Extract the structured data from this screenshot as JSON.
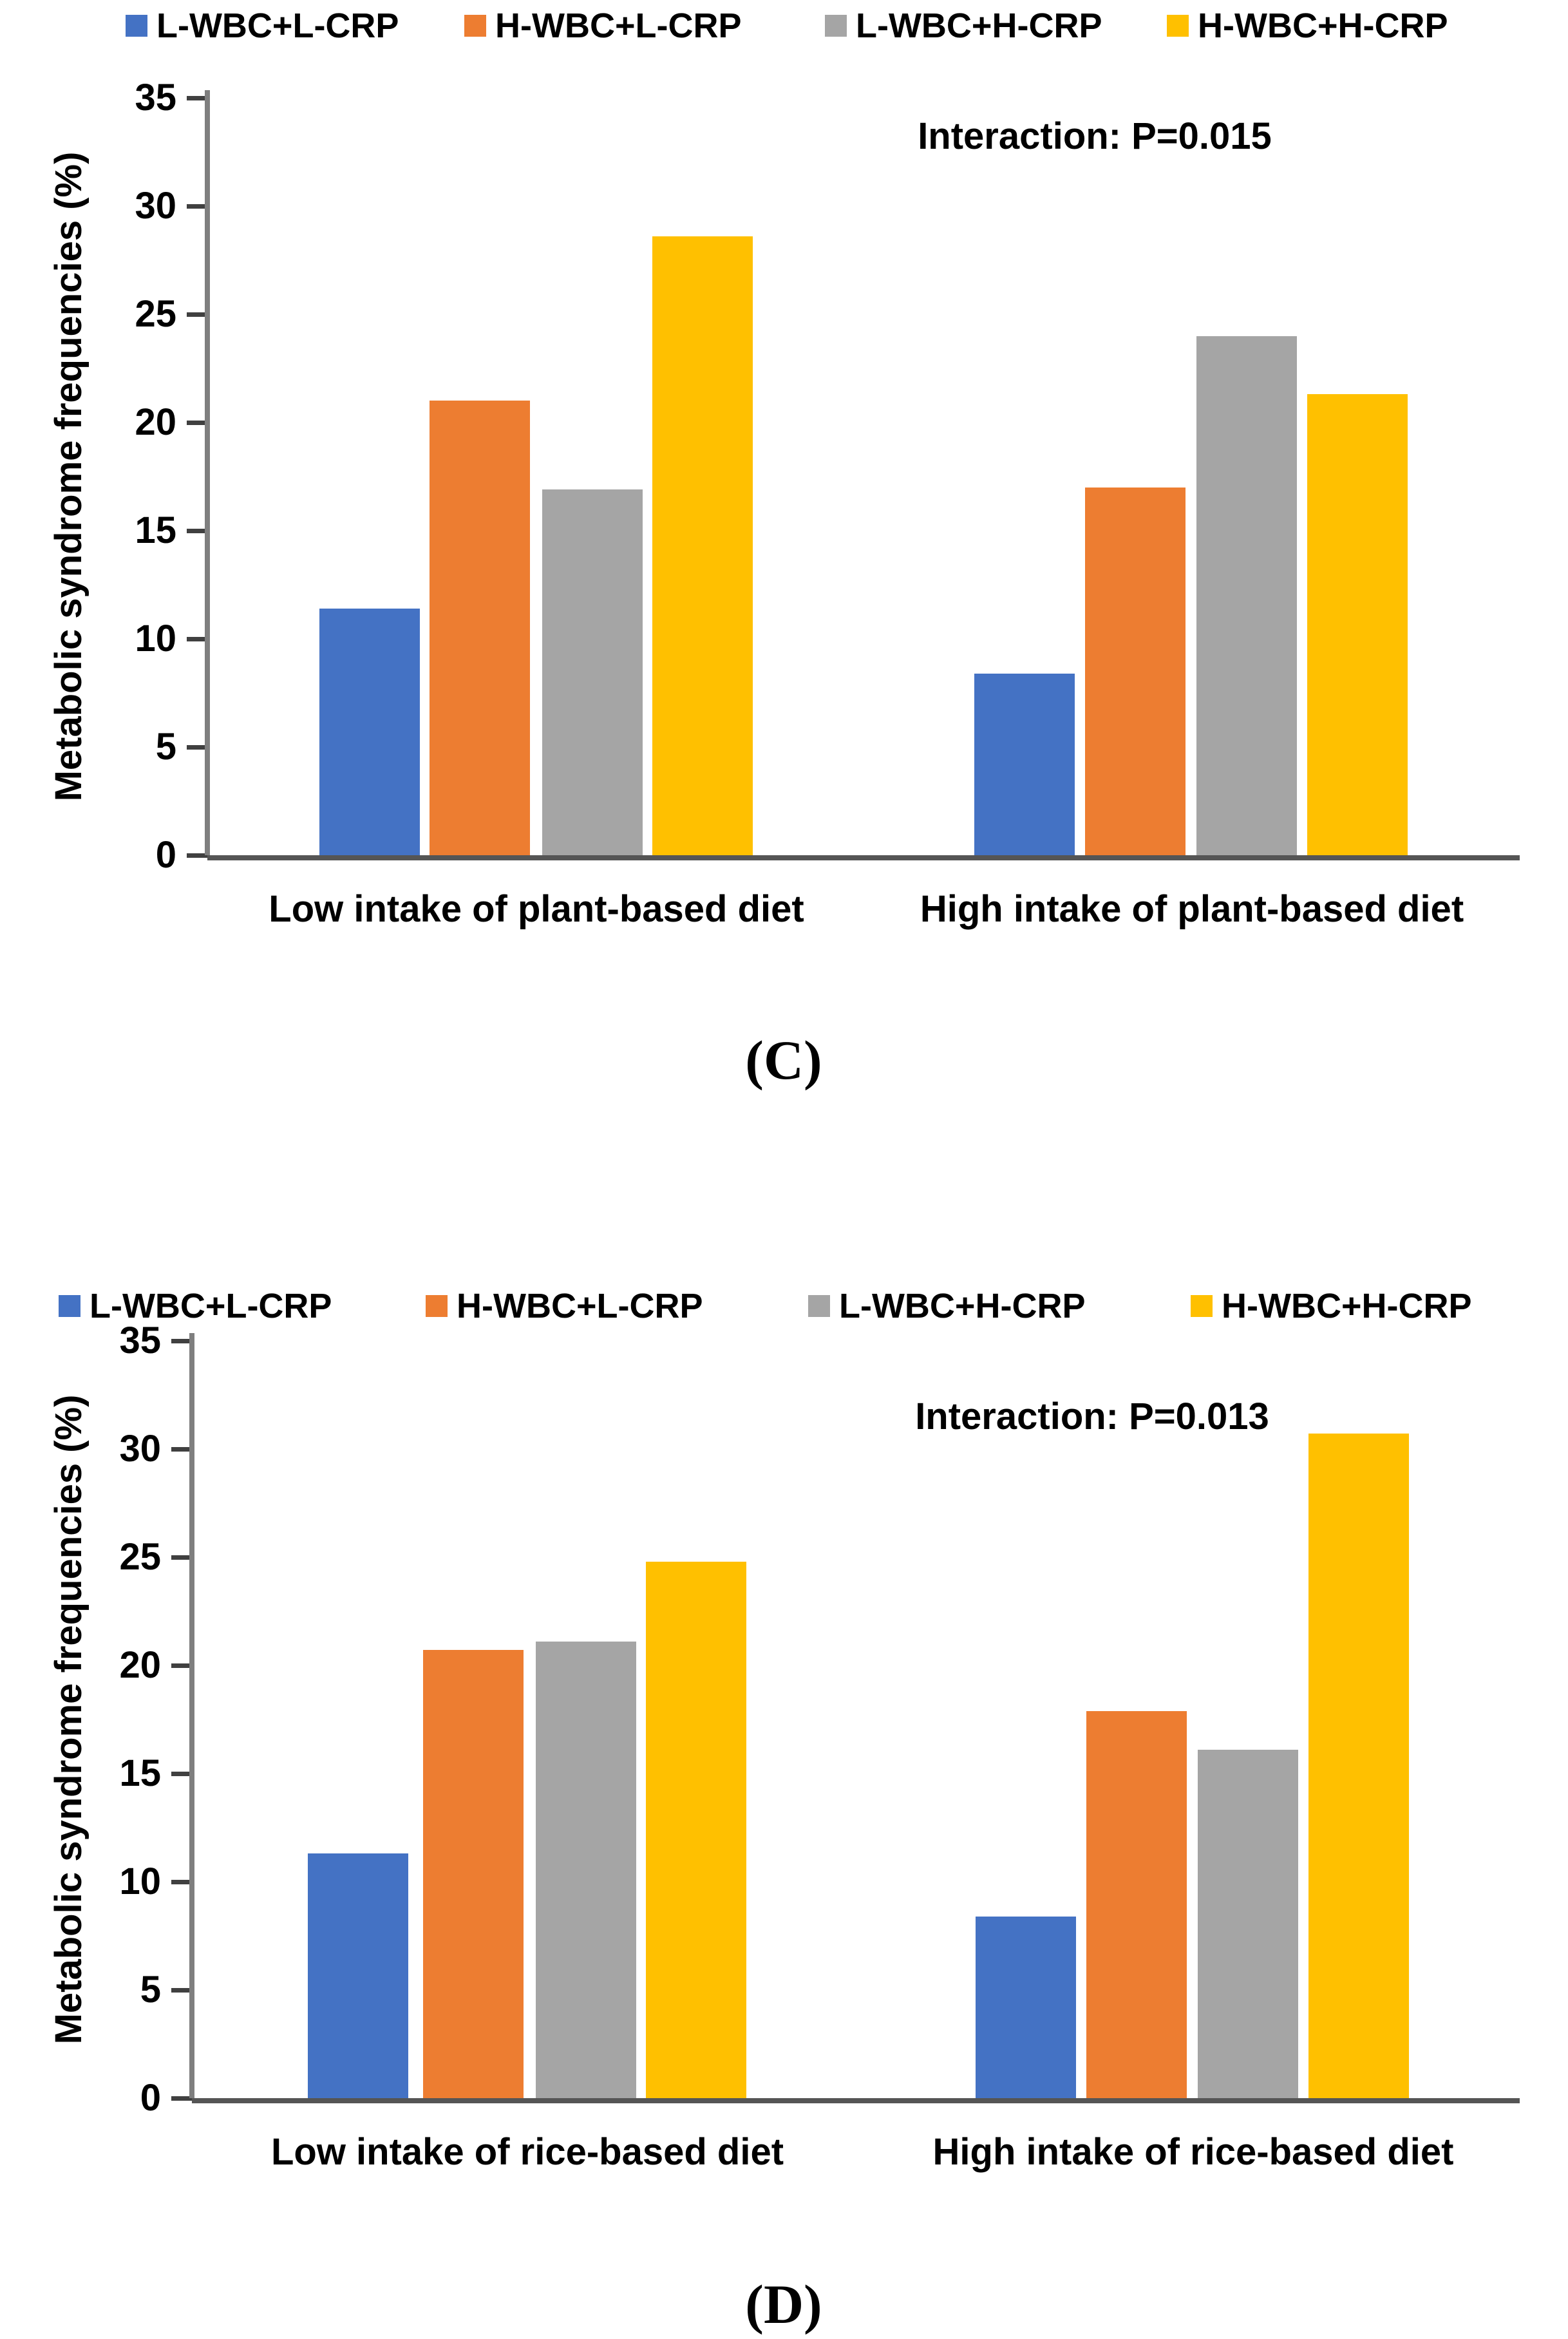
{
  "colors": {
    "series_blue": "#4472C4",
    "series_orange": "#ED7D31",
    "series_gray": "#A5A5A5",
    "series_yellow": "#FFC000",
    "axis_line": "#7f7f7f",
    "baseline": "#555555",
    "text": "#000000"
  },
  "chart_data": [
    {
      "type": "bar",
      "panel_label": "(C)",
      "annotation": "Interaction: P=0.015",
      "ylabel": "Metabolic syndrome frequencies (%)",
      "ylim": [
        0,
        35
      ],
      "yticks": [
        35,
        30,
        25,
        20,
        15,
        10,
        5,
        0
      ],
      "grid": "off",
      "legend_position": "top",
      "categories": [
        "Low intake of plant-based diet",
        "High intake of plant-based diet"
      ],
      "series": [
        {
          "name": "L-WBC+L-CRP",
          "color": "#4472C4",
          "values": [
            11.4,
            8.4
          ]
        },
        {
          "name": "H-WBC+L-CRP",
          "color": "#ED7D31",
          "values": [
            21.0,
            17.0
          ]
        },
        {
          "name": "L-WBC+H-CRP",
          "color": "#A5A5A5",
          "values": [
            16.9,
            24.0
          ]
        },
        {
          "name": "H-WBC+H-CRP",
          "color": "#FFC000",
          "values": [
            28.6,
            21.3
          ]
        }
      ]
    },
    {
      "type": "bar",
      "panel_label": "(D)",
      "annotation": "Interaction: P=0.013",
      "ylabel": "Metabolic syndrome frequencies (%)",
      "ylim": [
        0,
        35
      ],
      "yticks": [
        35,
        30,
        25,
        20,
        15,
        10,
        5,
        0
      ],
      "grid": "off",
      "legend_position": "top",
      "categories": [
        "Low intake of rice-based diet",
        "High intake of rice-based diet"
      ],
      "series": [
        {
          "name": "L-WBC+L-CRP",
          "color": "#4472C4",
          "values": [
            11.3,
            8.4
          ]
        },
        {
          "name": "H-WBC+L-CRP",
          "color": "#ED7D31",
          "values": [
            20.7,
            17.9
          ]
        },
        {
          "name": "L-WBC+H-CRP",
          "color": "#A5A5A5",
          "values": [
            21.1,
            16.1
          ]
        },
        {
          "name": "H-WBC+H-CRP",
          "color": "#FFC000",
          "values": [
            24.8,
            30.7
          ]
        }
      ]
    }
  ]
}
